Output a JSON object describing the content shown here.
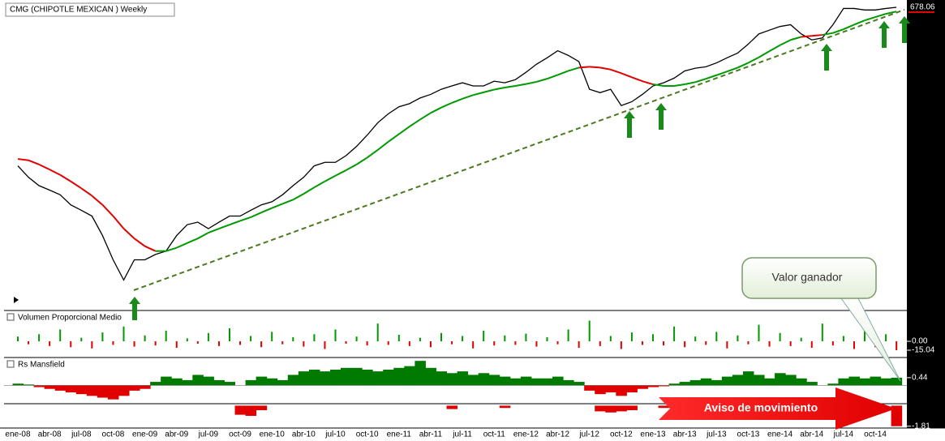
{
  "chart_data": [
    {
      "type": "price",
      "title": "CMG (CHIPOTLE MEXICAN ) Weekly",
      "scale": "log",
      "ylim": [
        40,
        700
      ],
      "last_value": 678.06,
      "last_value_color": "#e00000",
      "annotations": [
        "Valor ganador",
        "Aviso de movimiento"
      ],
      "categories": [
        "ene-08",
        null,
        null,
        "abr-08",
        null,
        null,
        "jul-08",
        null,
        null,
        "oct-08",
        null,
        null,
        "ene-09",
        null,
        null,
        "abr-09",
        null,
        null,
        "jul-09",
        null,
        null,
        "oct-09",
        null,
        null,
        "ene-10",
        null,
        null,
        "abr-10",
        null,
        null,
        "jul-10",
        null,
        null,
        "oct-10",
        null,
        null,
        "ene-11",
        null,
        null,
        "abr-11",
        null,
        null,
        "jul-11",
        null,
        null,
        "oct-11",
        null,
        null,
        "ene-12",
        null,
        null,
        "abr-12",
        null,
        null,
        "jul-12",
        null,
        null,
        "oct-12",
        null,
        null,
        "ene-13",
        null,
        null,
        "abr-13",
        null,
        null,
        "jul-13",
        null,
        null,
        "oct-13",
        null,
        null,
        "ene-14",
        null,
        null,
        "abr-14",
        null,
        null,
        "jul-14",
        null,
        null,
        "oct-14",
        null,
        null
      ],
      "series": [
        {
          "color": "#000000",
          "values": [
            140,
            125,
            115,
            110,
            105,
            95,
            90,
            85,
            70,
            55,
            45,
            55,
            55,
            58,
            60,
            70,
            78,
            80,
            75,
            80,
            85,
            85,
            90,
            95,
            98,
            105,
            115,
            125,
            140,
            145,
            145,
            155,
            170,
            190,
            215,
            235,
            252,
            260,
            275,
            285,
            300,
            310,
            320,
            310,
            310,
            325,
            320,
            330,
            355,
            385,
            410,
            440,
            420,
            395,
            300,
            290,
            300,
            255,
            265,
            285,
            310,
            320,
            335,
            360,
            370,
            375,
            390,
            410,
            430,
            470,
            520,
            540,
            560,
            570,
            520,
            490,
            500,
            570,
            670,
            670,
            660,
            660,
            670,
            678
          ]
        },
        {
          "color": "#009900",
          "below_color": "#e00000",
          "values": [
            150,
            148,
            142,
            135,
            128,
            120,
            112,
            104,
            95,
            85,
            75,
            68,
            63,
            60,
            60,
            62,
            65,
            68,
            72,
            75,
            78,
            81,
            84,
            88,
            92,
            96,
            100,
            106,
            113,
            120,
            127,
            134,
            142,
            152,
            164,
            178,
            192,
            207,
            222,
            237,
            250,
            262,
            273,
            283,
            291,
            299,
            305,
            310,
            316,
            323,
            333,
            346,
            360,
            372,
            375,
            372,
            365,
            352,
            338,
            325,
            315,
            310,
            310,
            315,
            322,
            333,
            345,
            358,
            372,
            390,
            412,
            438,
            465,
            490,
            505,
            510,
            515,
            525,
            545,
            570,
            595,
            615,
            635,
            650
          ]
        }
      ]
    },
    {
      "type": "histogram",
      "title": "Volumen Proporcional Medio",
      "ylim": [
        -26,
        48
      ],
      "yticks": [
        {
          "value": 0,
          "label": "0.00"
        },
        -15.04
      ],
      "color": "#009900",
      "below_color": "#e00000",
      "values": [
        8,
        -5,
        12,
        -8,
        20,
        -10,
        6,
        -12,
        15,
        -6,
        25,
        -9,
        10,
        -7,
        18,
        -11,
        5,
        -4,
        14,
        -8,
        22,
        -6,
        9,
        -10,
        16,
        -5,
        7,
        -9,
        12,
        -13,
        20,
        -4,
        8,
        -7,
        30,
        -6,
        11,
        -8,
        6,
        -10,
        14,
        -5,
        9,
        -12,
        18,
        -7,
        10,
        -6,
        13,
        -9,
        7,
        -5,
        20,
        -11,
        35,
        -8,
        9,
        -13,
        15,
        -6,
        12,
        -7,
        25,
        -10,
        8,
        -6,
        16,
        -12,
        10,
        -5,
        28,
        -9,
        14,
        -8,
        6,
        -11,
        30,
        -7,
        9,
        -13,
        18,
        -10,
        12,
        -15.04
      ]
    },
    {
      "type": "area",
      "title": "Rs Mansfield",
      "ylim": [
        -1,
        1.5
      ],
      "yticks": [
        0.44
      ],
      "color": "#007a00",
      "below_color": "#e00000",
      "values": [
        0.1,
        0.05,
        -0.1,
        -0.2,
        -0.3,
        -0.4,
        -0.5,
        -0.6,
        -0.7,
        -0.8,
        -0.6,
        -0.3,
        -0.2,
        0.2,
        0.5,
        0.4,
        0.3,
        0.6,
        0.5,
        0.3,
        0.2,
        0.0,
        0.3,
        0.5,
        0.4,
        0.3,
        0.6,
        0.8,
        0.9,
        0.8,
        0.9,
        1.0,
        1.0,
        0.9,
        0.8,
        0.9,
        1.0,
        1.1,
        1.4,
        1.0,
        0.8,
        0.7,
        0.8,
        0.6,
        0.7,
        0.6,
        0.5,
        0.4,
        0.5,
        0.4,
        0.4,
        0.5,
        0.3,
        0.2,
        -0.3,
        -0.5,
        -0.4,
        -0.6,
        -0.4,
        -0.2,
        -0.1,
        -0.05,
        0.1,
        0.2,
        0.3,
        0.4,
        0.3,
        0.5,
        0.6,
        0.8,
        0.6,
        0.4,
        0.7,
        0.6,
        0.4,
        0.2,
        0.0,
        0.1,
        0.4,
        0.5,
        0.4,
        0.5,
        0.4,
        0.44
      ]
    },
    {
      "type": "bar",
      "ylim": [
        -1.9,
        0.1
      ],
      "yticks": [
        -1.81
      ],
      "color": "#e00000",
      "values": [
        0,
        0,
        0,
        0,
        0,
        0,
        0,
        0,
        0,
        0,
        0,
        0,
        0,
        0,
        0,
        0,
        0,
        0,
        0,
        0,
        0,
        -0.8,
        -0.9,
        -0.4,
        0,
        0,
        0,
        0,
        0,
        0,
        0,
        0,
        0,
        0,
        0,
        0,
        0,
        0,
        0,
        0,
        0,
        -0.3,
        0,
        0,
        0,
        0,
        -0.2,
        0,
        0,
        0,
        0,
        0,
        0,
        0,
        0,
        -0.5,
        -0.6,
        -0.5,
        -0.4,
        0,
        0,
        -0.2,
        0,
        0,
        0,
        0,
        0,
        0,
        0,
        0,
        0,
        0,
        0,
        0,
        0,
        0,
        0,
        0,
        0,
        0,
        0,
        0,
        0,
        -1.81
      ]
    }
  ]
}
